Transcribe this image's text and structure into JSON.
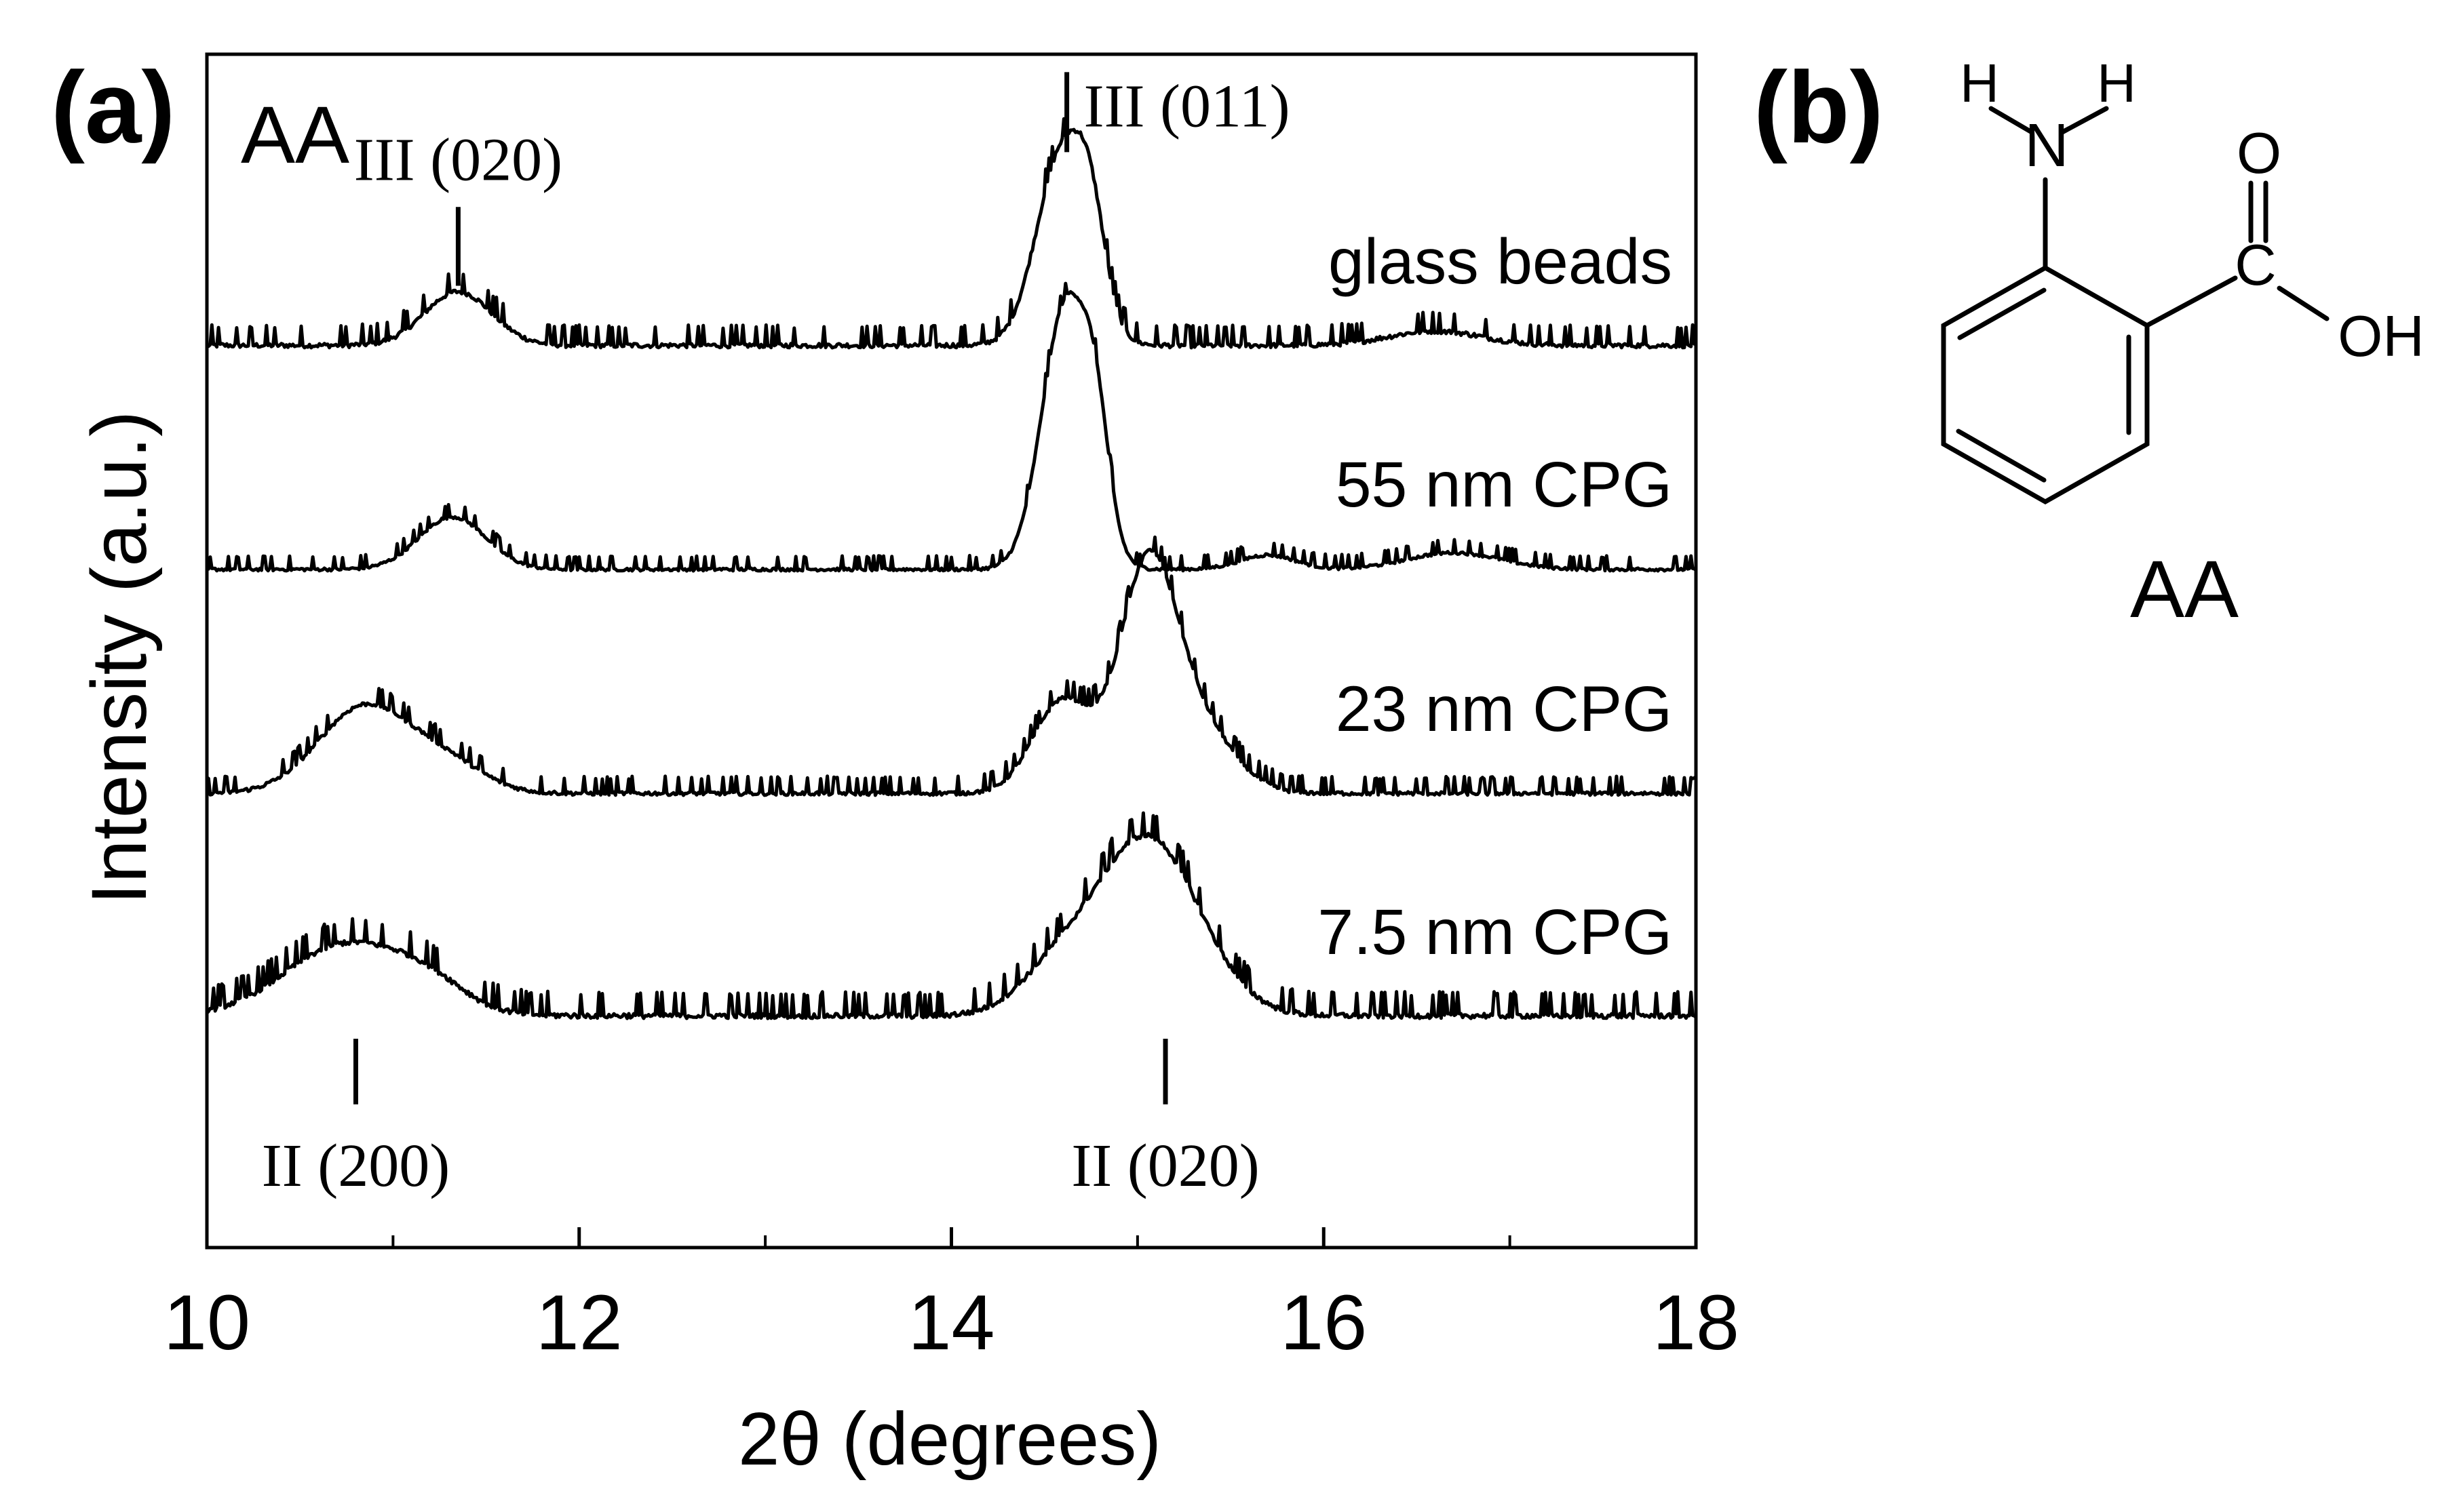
{
  "panel_a_label": "(a)",
  "panel_b_label": "(b)",
  "chart_data": {
    "type": "line",
    "title": "AA",
    "xlabel": "2θ (degrees)",
    "ylabel": "Intensity (a.u.)",
    "xlim": [
      10,
      18
    ],
    "ylim": [
      0,
      1
    ],
    "x_ticks": [
      10,
      12,
      14,
      16,
      18
    ],
    "x_tick_labels": [
      "10",
      "12",
      "14",
      "16",
      "18"
    ],
    "y_ticks_shown": false,
    "series": [
      {
        "name": "glass beads",
        "offset": 0.754,
        "peaks": [
          {
            "center": 11.35,
            "width": 0.18,
            "height": 0.045
          },
          {
            "center": 14.6,
            "width": 0.14,
            "height": 0.163
          },
          {
            "center": 14.75,
            "width": 0.08,
            "height": 0.06
          },
          {
            "center": 16.6,
            "width": 0.25,
            "height": 0.012
          }
        ],
        "noise": 0.012
      },
      {
        "name": "55 nm CPG",
        "offset": 0.567,
        "peaks": [
          {
            "center": 11.32,
            "width": 0.18,
            "height": 0.044
          },
          {
            "center": 14.62,
            "width": 0.13,
            "height": 0.225
          },
          {
            "center": 14.78,
            "width": 0.07,
            "height": 0.07
          },
          {
            "center": 15.7,
            "width": 0.15,
            "height": 0.012
          },
          {
            "center": 16.7,
            "width": 0.25,
            "height": 0.014
          }
        ],
        "noise": 0.008
      },
      {
        "name": "23 nm CPG",
        "offset": 0.379,
        "peaks": [
          {
            "center": 10.85,
            "width": 0.25,
            "height": 0.073
          },
          {
            "center": 11.3,
            "width": 0.2,
            "height": 0.022
          },
          {
            "center": 14.6,
            "width": 0.16,
            "height": 0.078
          },
          {
            "center": 15.05,
            "width": 0.15,
            "height": 0.173
          },
          {
            "center": 15.3,
            "width": 0.2,
            "height": 0.06
          }
        ],
        "noise": 0.01
      },
      {
        "name": "7.5 nm CPG",
        "offset": 0.192,
        "peaks": [
          {
            "center": 10.75,
            "width": 0.33,
            "height": 0.06
          },
          {
            "center": 11.2,
            "width": 0.2,
            "height": 0.018
          },
          {
            "center": 15.05,
            "width": 0.28,
            "height": 0.15
          },
          {
            "center": 14.55,
            "width": 0.2,
            "height": 0.03
          }
        ],
        "noise": 0.014
      }
    ],
    "annotations": [
      {
        "text": "III (020)",
        "x": 11.35,
        "y_top": 0.872,
        "y_bottom": 0.806,
        "label_above": true
      },
      {
        "text": "III (011)",
        "x": 14.62,
        "y_top": 0.985,
        "y_bottom": 0.918,
        "label_above": false
      },
      {
        "text": "II (200)",
        "x": 10.8,
        "y_top": 0.175,
        "y_bottom": 0.12,
        "label_above": false
      },
      {
        "text": "II (020)",
        "x": 15.15,
        "y_top": 0.175,
        "y_bottom": 0.12,
        "label_above": false
      }
    ]
  },
  "structure": {
    "name": "AA",
    "nh_h_left": "H",
    "nh_n": "N",
    "nh_h_right": "H",
    "carbonyl_o": "O",
    "carbonyl_c": "C",
    "hydroxyl": "OH"
  }
}
